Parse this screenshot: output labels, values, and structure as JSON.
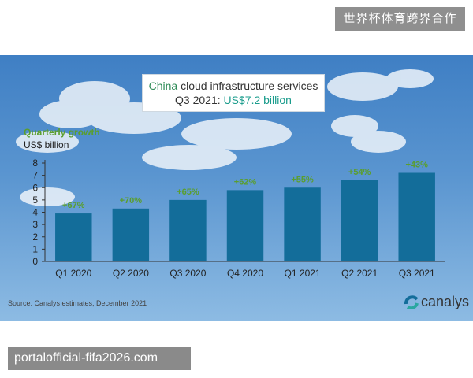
{
  "watermark_top": "世界杯体育跨界合作",
  "watermark_bottom": "portalofficial-fifa2026.com",
  "title": {
    "line1_prefix": "China",
    "line1_rest": " cloud infrastructure services",
    "line2_prefix": "Q3 2021: ",
    "line2_value": "US$7.2 billion"
  },
  "growth_label": "Quarterly growth",
  "unit_label": "US$ billion",
  "source": "Source: Canalys estimates, December 2021",
  "logo_text": "canalys",
  "colors": {
    "bar": "#136d9a",
    "growth": "#5a9e2e"
  },
  "chart_data": {
    "type": "bar",
    "categories": [
      "Q1 2020",
      "Q2 2020",
      "Q3 2020",
      "Q4 2020",
      "Q1 2021",
      "Q2 2021",
      "Q3 2021"
    ],
    "values": [
      3.9,
      4.3,
      5.0,
      5.8,
      6.0,
      6.6,
      7.2
    ],
    "data_labels": [
      "+67%",
      "+70%",
      "+65%",
      "+62%",
      "+55%",
      "+54%",
      "+43%"
    ],
    "ylabel": "US$ billion",
    "ylim": [
      0,
      8
    ],
    "yticks": [
      0,
      1,
      2,
      3,
      4,
      5,
      6,
      7,
      8
    ]
  }
}
